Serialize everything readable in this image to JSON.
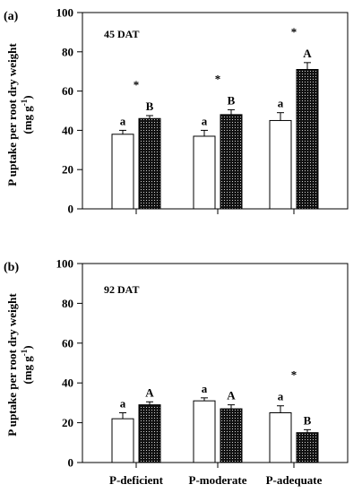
{
  "axis_title": "P uptake per root dry weight",
  "axis_unit_prefix": "(mg g",
  "axis_unit_exp": "-1",
  "axis_unit_suffix": ")",
  "colors": {
    "open_bar": "#ffffff",
    "dotted_bar": "#111111",
    "dot": "#ffffff",
    "stroke": "#000000"
  },
  "chart_data": [
    {
      "type": "bar",
      "panel_label": "(a)",
      "annotation": "45 DAT",
      "categories": [
        "P-deficient",
        "P-moderate",
        "P-adequate"
      ],
      "ylim": [
        0,
        100
      ],
      "yticks": [
        "0",
        "20",
        "40",
        "60",
        "80",
        "100"
      ],
      "show_category_labels": false,
      "series": [
        {
          "style": "open",
          "values": [
            38,
            37,
            45
          ],
          "errors": [
            2,
            3,
            4
          ],
          "letters": [
            "a",
            "a",
            "a"
          ]
        },
        {
          "style": "dotted",
          "values": [
            46,
            48,
            71
          ],
          "errors": [
            1.5,
            2.5,
            3.5
          ],
          "letters": [
            "B",
            "B",
            "A"
          ]
        }
      ],
      "stars": [
        true,
        true,
        true
      ]
    },
    {
      "type": "bar",
      "panel_label": "(b)",
      "annotation": "92 DAT",
      "categories": [
        "P-deficient",
        "P-moderate",
        "P-adequate"
      ],
      "ylim": [
        0,
        100
      ],
      "yticks": [
        "0",
        "20",
        "40",
        "60",
        "80",
        "100"
      ],
      "show_category_labels": true,
      "series": [
        {
          "style": "open",
          "values": [
            22,
            31,
            25
          ],
          "errors": [
            3,
            1.5,
            3.5
          ],
          "letters": [
            "a",
            "a",
            "a"
          ]
        },
        {
          "style": "dotted",
          "values": [
            29,
            27,
            15
          ],
          "errors": [
            1.5,
            2,
            1.5
          ],
          "letters": [
            "A",
            "A",
            "B"
          ]
        }
      ],
      "stars": [
        false,
        false,
        true
      ]
    }
  ]
}
